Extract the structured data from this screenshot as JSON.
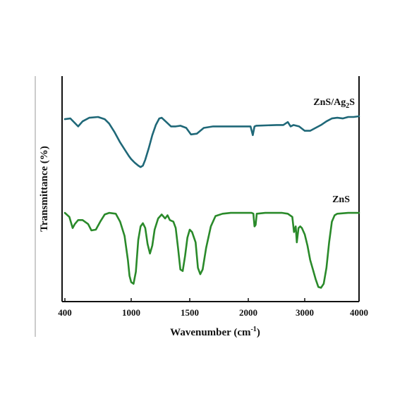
{
  "chart_data": {
    "type": "line",
    "xlabel_main": "Wavenumber (cm",
    "xlabel_sup": "-1",
    "xlabel_end": ")",
    "ylabel": "Transmittance (%)",
    "xlim": [
      400,
      4000
    ],
    "x_ticks": [
      400,
      1000,
      1500,
      2000,
      3000,
      4000
    ],
    "y_units": "relative",
    "grid": false,
    "series": [
      {
        "name_main": "ZnS/Ag",
        "name_sub": "2",
        "name_end": "S",
        "color": "#1f6878",
        "points": [
          [
            400,
            0.96
          ],
          [
            450,
            0.97
          ],
          [
            520,
            0.86
          ],
          [
            560,
            0.93
          ],
          [
            620,
            0.98
          ],
          [
            700,
            0.99
          ],
          [
            760,
            0.96
          ],
          [
            800,
            0.9
          ],
          [
            850,
            0.78
          ],
          [
            900,
            0.64
          ],
          [
            950,
            0.52
          ],
          [
            980,
            0.45
          ],
          [
            1000,
            0.41
          ],
          [
            1030,
            0.36
          ],
          [
            1060,
            0.32
          ],
          [
            1080,
            0.3
          ],
          [
            1100,
            0.32
          ],
          [
            1120,
            0.4
          ],
          [
            1150,
            0.56
          ],
          [
            1180,
            0.74
          ],
          [
            1210,
            0.88
          ],
          [
            1240,
            0.97
          ],
          [
            1260,
            0.98
          ],
          [
            1300,
            0.92
          ],
          [
            1340,
            0.86
          ],
          [
            1380,
            0.86
          ],
          [
            1420,
            0.87
          ],
          [
            1470,
            0.84
          ],
          [
            1510,
            0.75
          ],
          [
            1560,
            0.76
          ],
          [
            1620,
            0.84
          ],
          [
            1700,
            0.86
          ],
          [
            1800,
            0.86
          ],
          [
            1900,
            0.86
          ],
          [
            2000,
            0.86
          ],
          [
            2040,
            0.86
          ],
          [
            2080,
            0.74
          ],
          [
            2110,
            0.86
          ],
          [
            2140,
            0.87
          ],
          [
            2500,
            0.88
          ],
          [
            2620,
            0.88
          ],
          [
            2700,
            0.92
          ],
          [
            2750,
            0.86
          ],
          [
            2800,
            0.88
          ],
          [
            2900,
            0.86
          ],
          [
            3000,
            0.8
          ],
          [
            3100,
            0.8
          ],
          [
            3200,
            0.84
          ],
          [
            3300,
            0.88
          ],
          [
            3400,
            0.93
          ],
          [
            3500,
            0.97
          ],
          [
            3600,
            0.98
          ],
          [
            3700,
            0.97
          ],
          [
            3800,
            0.99
          ],
          [
            3900,
            0.99
          ],
          [
            4000,
            1.0
          ]
        ]
      },
      {
        "name_main": "ZnS",
        "name_sub": "",
        "name_end": "",
        "color": "#2a8a2a",
        "points": [
          [
            400,
            0.99
          ],
          [
            440,
            0.94
          ],
          [
            470,
            0.8
          ],
          [
            490,
            0.85
          ],
          [
            520,
            0.9
          ],
          [
            560,
            0.9
          ],
          [
            610,
            0.85
          ],
          [
            640,
            0.77
          ],
          [
            680,
            0.78
          ],
          [
            720,
            0.88
          ],
          [
            760,
            0.97
          ],
          [
            800,
            0.99
          ],
          [
            860,
            0.98
          ],
          [
            900,
            0.88
          ],
          [
            940,
            0.7
          ],
          [
            970,
            0.4
          ],
          [
            985,
            0.2
          ],
          [
            1000,
            0.12
          ],
          [
            1020,
            0.1
          ],
          [
            1040,
            0.25
          ],
          [
            1060,
            0.65
          ],
          [
            1080,
            0.82
          ],
          [
            1100,
            0.86
          ],
          [
            1120,
            0.8
          ],
          [
            1140,
            0.6
          ],
          [
            1160,
            0.48
          ],
          [
            1180,
            0.58
          ],
          [
            1200,
            0.78
          ],
          [
            1230,
            0.92
          ],
          [
            1260,
            0.97
          ],
          [
            1290,
            0.92
          ],
          [
            1310,
            0.96
          ],
          [
            1330,
            0.9
          ],
          [
            1360,
            0.88
          ],
          [
            1380,
            0.8
          ],
          [
            1400,
            0.55
          ],
          [
            1420,
            0.28
          ],
          [
            1440,
            0.26
          ],
          [
            1460,
            0.45
          ],
          [
            1480,
            0.68
          ],
          [
            1500,
            0.78
          ],
          [
            1520,
            0.75
          ],
          [
            1550,
            0.62
          ],
          [
            1570,
            0.3
          ],
          [
            1590,
            0.22
          ],
          [
            1610,
            0.28
          ],
          [
            1640,
            0.55
          ],
          [
            1680,
            0.82
          ],
          [
            1720,
            0.95
          ],
          [
            1780,
            0.98
          ],
          [
            1850,
            0.99
          ],
          [
            2000,
            0.99
          ],
          [
            2060,
            0.99
          ],
          [
            2090,
            0.98
          ],
          [
            2110,
            0.82
          ],
          [
            2130,
            0.84
          ],
          [
            2150,
            0.98
          ],
          [
            2300,
            0.99
          ],
          [
            2600,
            0.99
          ],
          [
            2700,
            0.98
          ],
          [
            2780,
            0.94
          ],
          [
            2810,
            0.75
          ],
          [
            2840,
            0.82
          ],
          [
            2860,
            0.62
          ],
          [
            2890,
            0.8
          ],
          [
            2920,
            0.82
          ],
          [
            2950,
            0.8
          ],
          [
            3000,
            0.72
          ],
          [
            3050,
            0.58
          ],
          [
            3100,
            0.4
          ],
          [
            3150,
            0.28
          ],
          [
            3200,
            0.16
          ],
          [
            3250,
            0.06
          ],
          [
            3300,
            0.05
          ],
          [
            3350,
            0.1
          ],
          [
            3400,
            0.3
          ],
          [
            3450,
            0.62
          ],
          [
            3500,
            0.88
          ],
          [
            3550,
            0.96
          ],
          [
            3600,
            0.98
          ],
          [
            3800,
            0.99
          ],
          [
            4000,
            0.99
          ]
        ]
      }
    ]
  }
}
